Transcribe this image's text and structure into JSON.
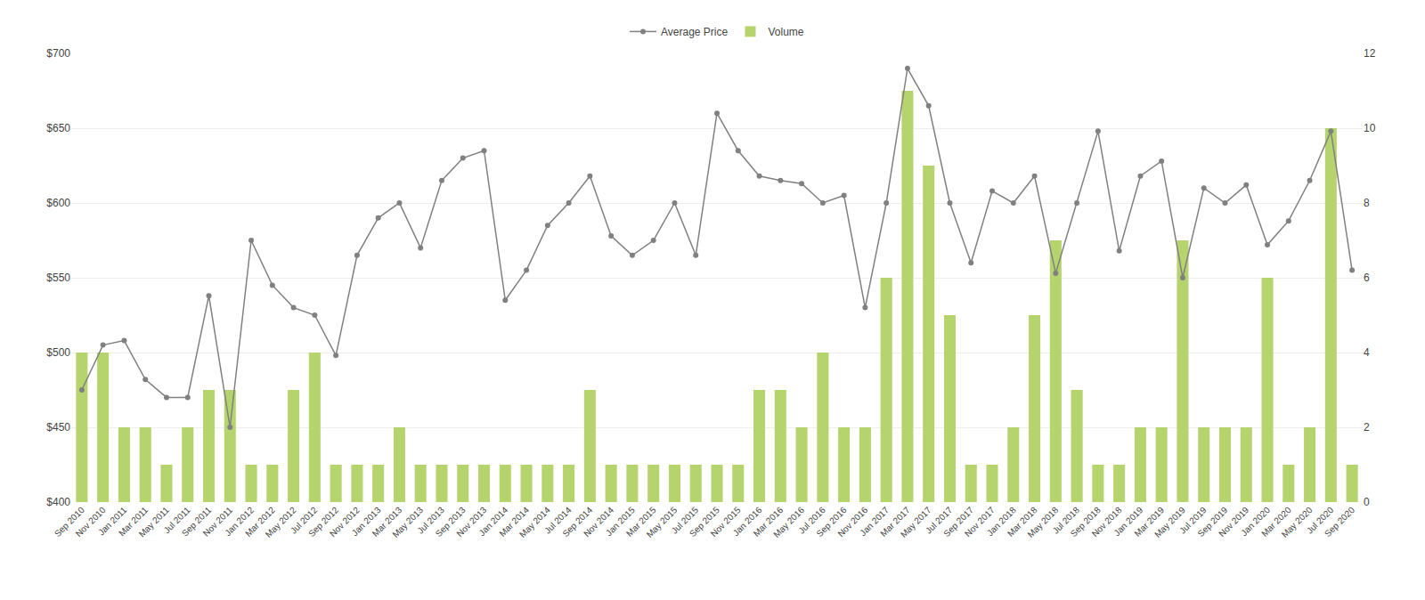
{
  "chart_data": {
    "type": "bar",
    "categories": [
      "Sep 2010",
      "Nov 2010",
      "Jan 2011",
      "Mar 2011",
      "May 2011",
      "Jul 2011",
      "Sep 2011",
      "Nov 2011",
      "Jan 2012",
      "Mar 2012",
      "May 2012",
      "Jul 2012",
      "Sep 2012",
      "Nov 2012",
      "Jan 2013",
      "Mar 2013",
      "May 2013",
      "Jul 2013",
      "Sep 2013",
      "Nov 2013",
      "Jan 2014",
      "Mar 2014",
      "May 2014",
      "Jul 2014",
      "Sep 2014",
      "Nov 2014",
      "Jan 2015",
      "Mar 2015",
      "May 2015",
      "Jul 2015",
      "Sep 2015",
      "Nov 2015",
      "Jan 2016",
      "Mar 2016",
      "May 2016",
      "Jul 2016",
      "Sep 2016",
      "Nov 2016",
      "Jan 2017",
      "Mar 2017",
      "May 2017",
      "Jul 2017",
      "Sep 2017",
      "Nov 2017",
      "Jan 2018",
      "Mar 2018",
      "May 2018",
      "Jul 2018",
      "Sep 2018",
      "Nov 2018",
      "Jan 2019",
      "Mar 2019",
      "May 2019",
      "Jul 2019",
      "Sep 2019",
      "Nov 2019",
      "Jan 2020",
      "Mar 2020",
      "May 2020",
      "Jul 2020",
      "Sep 2020"
    ],
    "series": [
      {
        "name": "Average Price",
        "type": "line",
        "marker": "circle",
        "color": "#808080",
        "values": [
          475,
          505,
          508,
          482,
          470,
          470,
          538,
          450,
          575,
          545,
          530,
          525,
          498,
          565,
          590,
          600,
          570,
          615,
          630,
          635,
          535,
          555,
          585,
          600,
          618,
          578,
          565,
          575,
          600,
          565,
          660,
          635,
          618,
          615,
          613,
          600,
          605,
          530,
          600,
          690,
          665,
          600,
          560,
          608,
          600,
          618,
          553,
          600,
          648,
          568,
          618,
          628,
          550,
          610,
          600,
          612,
          572,
          588,
          615,
          648,
          555
        ]
      },
      {
        "name": "Volume",
        "type": "bar",
        "axis": "y2",
        "color": "#b5d46e",
        "values": [
          4,
          4,
          2,
          2,
          1,
          2,
          3,
          3,
          1,
          1,
          3,
          4,
          1,
          1,
          1,
          2,
          1,
          1,
          1,
          1,
          1,
          1,
          1,
          1,
          3,
          1,
          1,
          1,
          1,
          1,
          1,
          1,
          3,
          3,
          2,
          4,
          2,
          2,
          6,
          11,
          9,
          5,
          1,
          1,
          2,
          5,
          7,
          3,
          1,
          1,
          2,
          2,
          7,
          2,
          2,
          2,
          6,
          1,
          2,
          10,
          1
        ]
      }
    ],
    "ylim": [
      400,
      700
    ],
    "yticks": [
      {
        "value": 400,
        "label": "$400"
      },
      {
        "value": 450,
        "label": "$450"
      },
      {
        "value": 500,
        "label": "$500"
      },
      {
        "value": 550,
        "label": "$550"
      },
      {
        "value": 600,
        "label": "$600"
      },
      {
        "value": 650,
        "label": "$650"
      },
      {
        "value": 700,
        "label": "$700"
      }
    ],
    "y2lim": [
      0,
      12
    ],
    "y2ticks": [
      0,
      2,
      4,
      6,
      8,
      10,
      12
    ],
    "grid": true,
    "legend": "top"
  }
}
